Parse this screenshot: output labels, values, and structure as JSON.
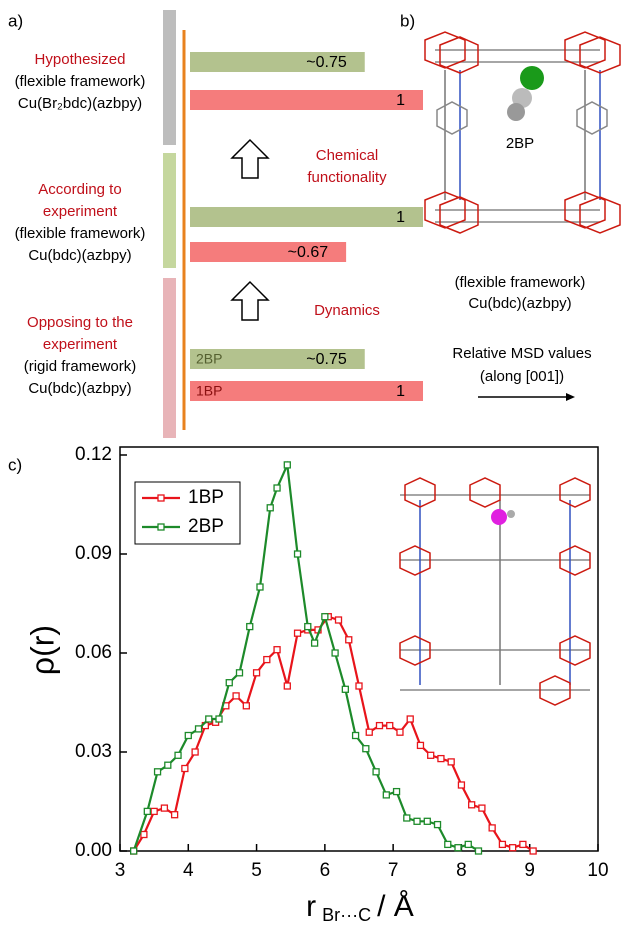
{
  "chart_data": [
    {
      "type": "bar",
      "panel_label": "a)",
      "groups": [
        {
          "title_lines": [
            "Hypothesized"
          ],
          "detail_lines": [
            "(flexible framework)",
            "Cu(Br₂bdc)(azbpy)"
          ],
          "band_color": "#bdbdbd"
        },
        {
          "title_lines": [
            "According to",
            "experiment"
          ],
          "detail_lines": [
            "(flexible framework)",
            "Cu(bdc)(azbpy)"
          ],
          "band_color": "#c5d79e"
        },
        {
          "title_lines": [
            "Opposing to the",
            "experiment"
          ],
          "detail_lines": [
            "(rigid framework)",
            "Cu(bdc)(azbpy)"
          ],
          "band_color": "#e8b4b8"
        }
      ],
      "series": [
        {
          "name": "2BP",
          "color": "#b3c28e",
          "values": [
            0.75,
            1,
            0.75
          ],
          "value_labels": [
            "~0.75",
            "1",
            "~0.75"
          ]
        },
        {
          "name": "1BP",
          "color": "#f57c7c",
          "values": [
            1,
            0.67,
            1
          ],
          "value_labels": [
            "1",
            "~0.67",
            "1"
          ]
        }
      ],
      "xlim": [
        0,
        1
      ],
      "annotations": [
        [
          "Chemical",
          "functionality"
        ],
        [
          "Dynamics"
        ]
      ],
      "axis_note": [
        "Relative MSD values",
        "(along [001])"
      ],
      "structure": {
        "panel_label": "b)",
        "guest": "2BP",
        "caption": [
          "(flexible framework)",
          "Cu(bdc)(azbpy)"
        ]
      }
    },
    {
      "type": "line",
      "panel_label": "c)",
      "x_label": {
        "symbol": "r",
        "subscript": "Br···C",
        "unit": "/ Å"
      },
      "y_label": "ρ(r)",
      "xlim": [
        3,
        10
      ],
      "xticks": [
        3,
        4,
        5,
        6,
        7,
        8,
        9,
        10
      ],
      "ylim": [
        0,
        0.12
      ],
      "yticks": [
        {
          "value": 0,
          "label": "0.00"
        },
        {
          "value": 0.03,
          "label": "0.03"
        },
        {
          "value": 0.06,
          "label": "0.06"
        },
        {
          "value": 0.09,
          "label": "0.09"
        },
        {
          "value": 0.12,
          "label": "0.12"
        }
      ],
      "series": [
        {
          "name": "1BP",
          "color": "#e8141b",
          "x": [
            3.2,
            3.35,
            3.5,
            3.65,
            3.8,
            3.95,
            4.1,
            4.25,
            4.4,
            4.55,
            4.7,
            4.85,
            5.0,
            5.15,
            5.3,
            5.45,
            5.6,
            5.75,
            5.9,
            6.05,
            6.2,
            6.35,
            6.5,
            6.65,
            6.8,
            6.95,
            7.1,
            7.25,
            7.4,
            7.55,
            7.7,
            7.85,
            8.0,
            8.15,
            8.3,
            8.45,
            8.6,
            8.75,
            8.9,
            9.05
          ],
          "values": [
            0.0,
            0.005,
            0.012,
            0.013,
            0.011,
            0.025,
            0.03,
            0.038,
            0.039,
            0.044,
            0.047,
            0.044,
            0.054,
            0.058,
            0.061,
            0.05,
            0.066,
            0.067,
            0.067,
            0.071,
            0.07,
            0.064,
            0.05,
            0.036,
            0.038,
            0.038,
            0.036,
            0.04,
            0.032,
            0.029,
            0.028,
            0.027,
            0.02,
            0.014,
            0.013,
            0.007,
            0.002,
            0.001,
            0.002,
            0.0
          ]
        },
        {
          "name": "2BP",
          "color": "#1d8a2a",
          "x": [
            3.2,
            3.4,
            3.55,
            3.7,
            3.85,
            4.0,
            4.15,
            4.3,
            4.45,
            4.6,
            4.75,
            4.9,
            5.05,
            5.2,
            5.3,
            5.45,
            5.6,
            5.75,
            5.85,
            6.0,
            6.15,
            6.3,
            6.45,
            6.6,
            6.75,
            6.9,
            7.05,
            7.2,
            7.35,
            7.5,
            7.65,
            7.8,
            7.95,
            8.1,
            8.25
          ],
          "values": [
            0.0,
            0.012,
            0.024,
            0.026,
            0.029,
            0.035,
            0.037,
            0.04,
            0.04,
            0.051,
            0.054,
            0.068,
            0.08,
            0.104,
            0.11,
            0.117,
            0.09,
            0.068,
            0.063,
            0.071,
            0.06,
            0.049,
            0.035,
            0.031,
            0.024,
            0.017,
            0.018,
            0.01,
            0.009,
            0.009,
            0.008,
            0.002,
            0.001,
            0.002,
            0.0
          ]
        }
      ]
    }
  ]
}
